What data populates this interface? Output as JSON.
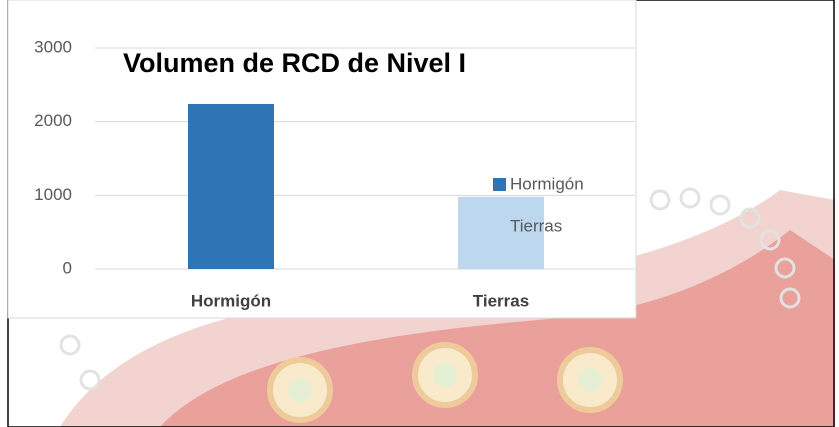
{
  "chart_data": {
    "type": "bar",
    "title": "Volumen de RCD de Nivel I",
    "categories": [
      "Hormigón",
      "Tierras"
    ],
    "values": [
      2240,
      980
    ],
    "colors": [
      "#2e75b6",
      "#bdd7ee"
    ],
    "ylim": [
      0,
      3000
    ],
    "yticks": [
      0,
      1000,
      2000,
      3000
    ],
    "grid": true,
    "legend": "right"
  }
}
